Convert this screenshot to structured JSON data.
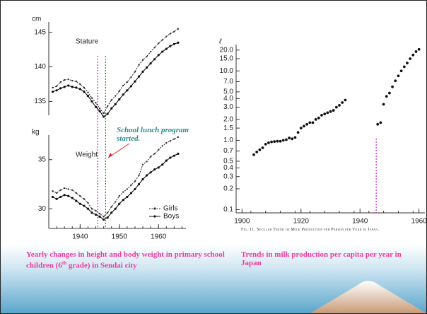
{
  "chart_data": [
    {
      "type": "line",
      "panel_label": "Stature",
      "y_axis_label": "cm",
      "x": [
        1933,
        1934,
        1935,
        1936,
        1937,
        1938,
        1939,
        1940,
        1941,
        1942,
        1943,
        1944,
        1945,
        1946,
        1947,
        1948,
        1949,
        1950,
        1951,
        1952,
        1953,
        1954,
        1955,
        1956,
        1957,
        1958,
        1959,
        1960,
        1961,
        1962,
        1963,
        1964,
        1965
      ],
      "series": [
        {
          "name": "Girls",
          "color": "#333333",
          "values": [
            137.0,
            137.2,
            137.8,
            138.1,
            138.2,
            138.0,
            137.9,
            137.5,
            137.0,
            136.3,
            135.5,
            134.8,
            134.0,
            133.3,
            134.3,
            135.2,
            135.8,
            136.5,
            137.3,
            137.8,
            138.5,
            139.3,
            140.3,
            141.0,
            141.5,
            142.2,
            142.8,
            143.4,
            143.9,
            144.4,
            144.8,
            145.1,
            145.5
          ]
        },
        {
          "name": "Boys",
          "color": "#111111",
          "values": [
            136.4,
            136.6,
            136.9,
            137.1,
            137.3,
            137.1,
            137.0,
            136.8,
            136.4,
            135.8,
            135.0,
            134.2,
            133.6,
            132.8,
            133.2,
            134.0,
            134.6,
            135.3,
            136.0,
            136.6,
            137.2,
            137.9,
            138.6,
            139.3,
            139.9,
            140.5,
            141.1,
            141.7,
            142.2,
            142.6,
            143.0,
            143.3,
            143.5
          ]
        }
      ],
      "xlim": [
        1932,
        1967
      ],
      "ylim": [
        133,
        146.5
      ],
      "yticks": [
        135,
        140,
        145
      ],
      "markers": [
        {
          "x": 1944.5,
          "color": "#cc22cc"
        },
        {
          "x": 1946.5,
          "color": "#1a8a3a"
        }
      ]
    },
    {
      "type": "line",
      "panel_label": "Weight",
      "y_axis_label": "kg",
      "annotation": "School lunch program started.",
      "caption": [
        "Yearly changes in height and body weight in primary school children (6",
        "th",
        " grade) in Sendai city"
      ],
      "x": [
        1933,
        1934,
        1935,
        1936,
        1937,
        1938,
        1939,
        1940,
        1941,
        1942,
        1943,
        1944,
        1945,
        1946,
        1947,
        1948,
        1949,
        1950,
        1951,
        1952,
        1953,
        1954,
        1955,
        1956,
        1957,
        1958,
        1959,
        1960,
        1961,
        1962,
        1963,
        1964,
        1965
      ],
      "series": [
        {
          "name": "Girls",
          "color": "#333333",
          "values": [
            31.8,
            31.6,
            31.9,
            32.1,
            32.0,
            31.9,
            31.6,
            31.3,
            31.0,
            30.6,
            30.0,
            29.8,
            29.5,
            29.2,
            29.6,
            30.2,
            30.7,
            31.3,
            31.7,
            32.0,
            32.4,
            32.8,
            33.4,
            34.5,
            34.8,
            35.3,
            35.6,
            36.0,
            36.4,
            36.7,
            36.9,
            37.1,
            37.3
          ]
        },
        {
          "name": "Boys",
          "color": "#111111",
          "values": [
            31.2,
            31.0,
            31.2,
            31.4,
            31.3,
            31.1,
            30.8,
            30.5,
            30.3,
            30.0,
            29.6,
            29.4,
            29.2,
            28.9,
            29.1,
            29.6,
            30.0,
            30.5,
            30.9,
            31.2,
            31.6,
            32.0,
            32.5,
            33.0,
            33.4,
            33.7,
            34.0,
            34.2,
            34.5,
            34.9,
            35.2,
            35.4,
            35.6
          ]
        }
      ],
      "xlim": [
        1932,
        1967
      ],
      "ylim": [
        28,
        37.5
      ],
      "yticks": [
        30,
        35
      ],
      "xticks": [
        1940,
        1950,
        1960
      ],
      "legend": "lower right"
    },
    {
      "type": "scatter",
      "y_axis_label": "ℓ",
      "log_scale": true,
      "note": "Fig. 11. Secular Trend of Milk Production per Person per Year in Japan.",
      "caption": [
        "Trends in milk production per capita per year in Japan"
      ],
      "x": [
        1904,
        1905,
        1906,
        1907,
        1908,
        1909,
        1910,
        1911,
        1912,
        1913,
        1914,
        1915,
        1916,
        1917,
        1918,
        1919,
        1920,
        1921,
        1922,
        1923,
        1924,
        1925,
        1926,
        1927,
        1928,
        1929,
        1930,
        1931,
        1932,
        1933,
        1934,
        1935,
        1946,
        1947,
        1948,
        1949,
        1950,
        1951,
        1952,
        1953,
        1954,
        1955,
        1956,
        1957,
        1958,
        1959,
        1960
      ],
      "values": [
        0.62,
        0.68,
        0.73,
        0.78,
        0.88,
        0.92,
        0.95,
        0.96,
        0.97,
        0.97,
        1.0,
        1.02,
        1.08,
        1.05,
        1.1,
        1.3,
        1.5,
        1.6,
        1.7,
        1.8,
        1.8,
        2.0,
        2.1,
        2.3,
        2.4,
        2.5,
        2.6,
        2.7,
        3.0,
        3.2,
        3.5,
        3.8,
        1.7,
        1.8,
        3.3,
        4.3,
        4.8,
        5.9,
        7.2,
        8.5,
        10.0,
        11.5,
        13,
        15,
        17,
        19,
        20.5
      ],
      "color": "#111111",
      "xlim": [
        1898,
        1962
      ],
      "xticks": [
        1900,
        1920,
        1940,
        1960
      ],
      "ylim": [
        0.09,
        24
      ],
      "yticks": [
        0.1,
        0.2,
        0.3,
        0.4,
        0.5,
        0.7,
        {
          "value": 1,
          "label": "1.0"
        },
        1.5,
        {
          "value": 2,
          "label": "2.0"
        },
        {
          "value": 3,
          "label": "3.0"
        },
        {
          "value": 4,
          "label": "4.0"
        },
        {
          "value": 5,
          "label": "5.0"
        },
        {
          "value": 7,
          "label": "7.0"
        },
        {
          "value": 10,
          "label": "10.0"
        },
        {
          "value": 15,
          "label": "15.0"
        },
        {
          "value": 20,
          "label": "20.0"
        }
      ],
      "markers": [
        {
          "x": 1945.5,
          "color": "#cc22cc"
        }
      ]
    }
  ]
}
